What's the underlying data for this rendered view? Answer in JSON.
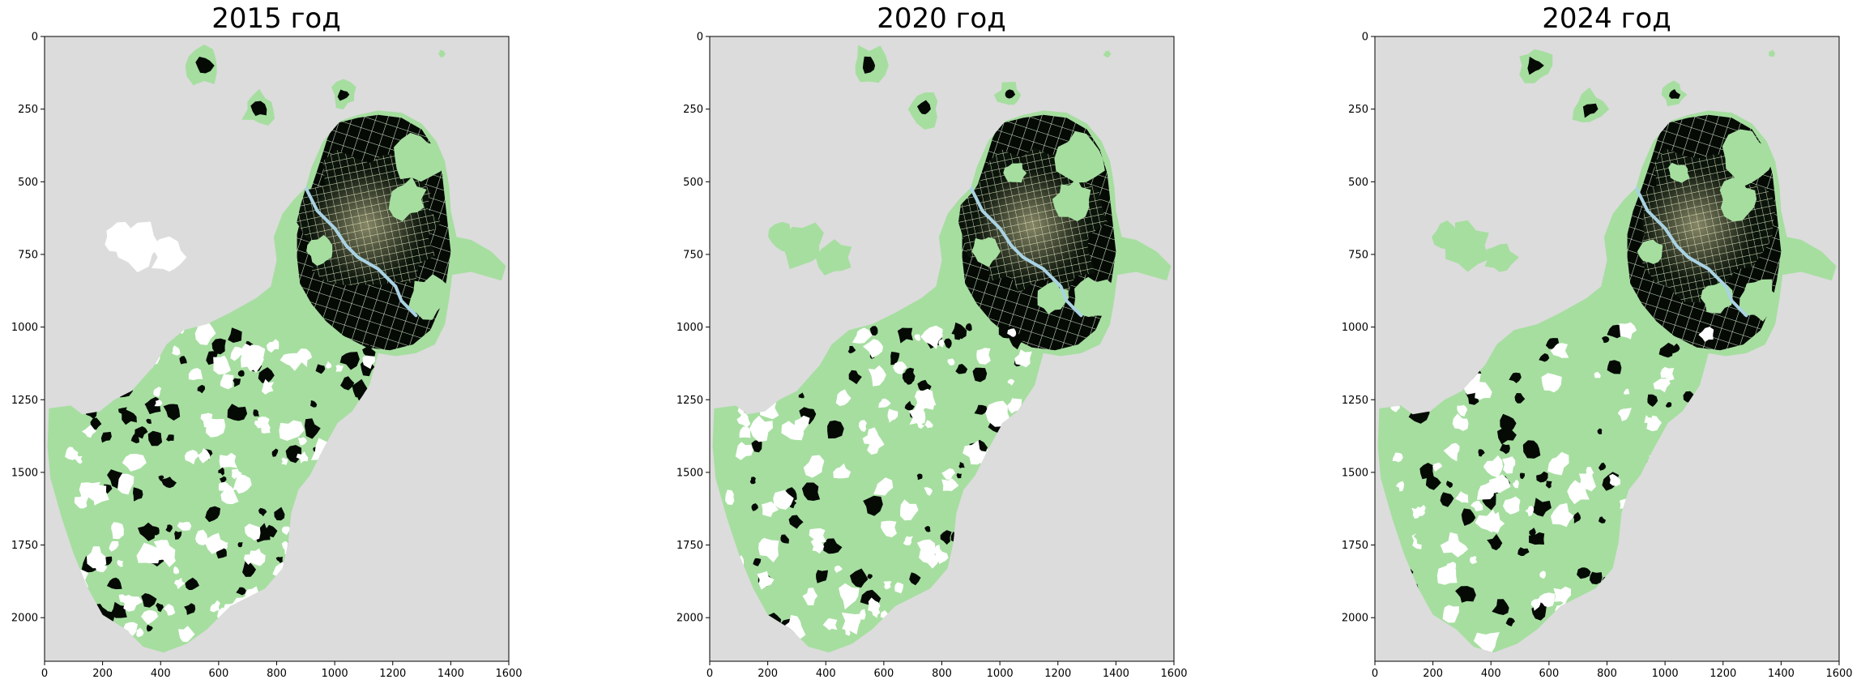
{
  "figure": {
    "panels": [
      {
        "title": "2015 год",
        "variant": 0
      },
      {
        "title": "2020 год",
        "variant": 1
      },
      {
        "title": "2024 год",
        "variant": 2
      }
    ],
    "x_ticks": [
      0,
      200,
      400,
      600,
      800,
      1000,
      1200,
      1400,
      1600
    ],
    "y_ticks": [
      0,
      250,
      500,
      750,
      1000,
      1250,
      1500,
      1750,
      2000
    ],
    "x_range": [
      0,
      1600
    ],
    "y_range": [
      0,
      2150
    ],
    "colors": {
      "background": "#dcdcdc",
      "vegetation": "#a6dea0",
      "dense_urban": "#050a05",
      "open_area": "#ffffff",
      "water": "#a9d2e3"
    }
  }
}
